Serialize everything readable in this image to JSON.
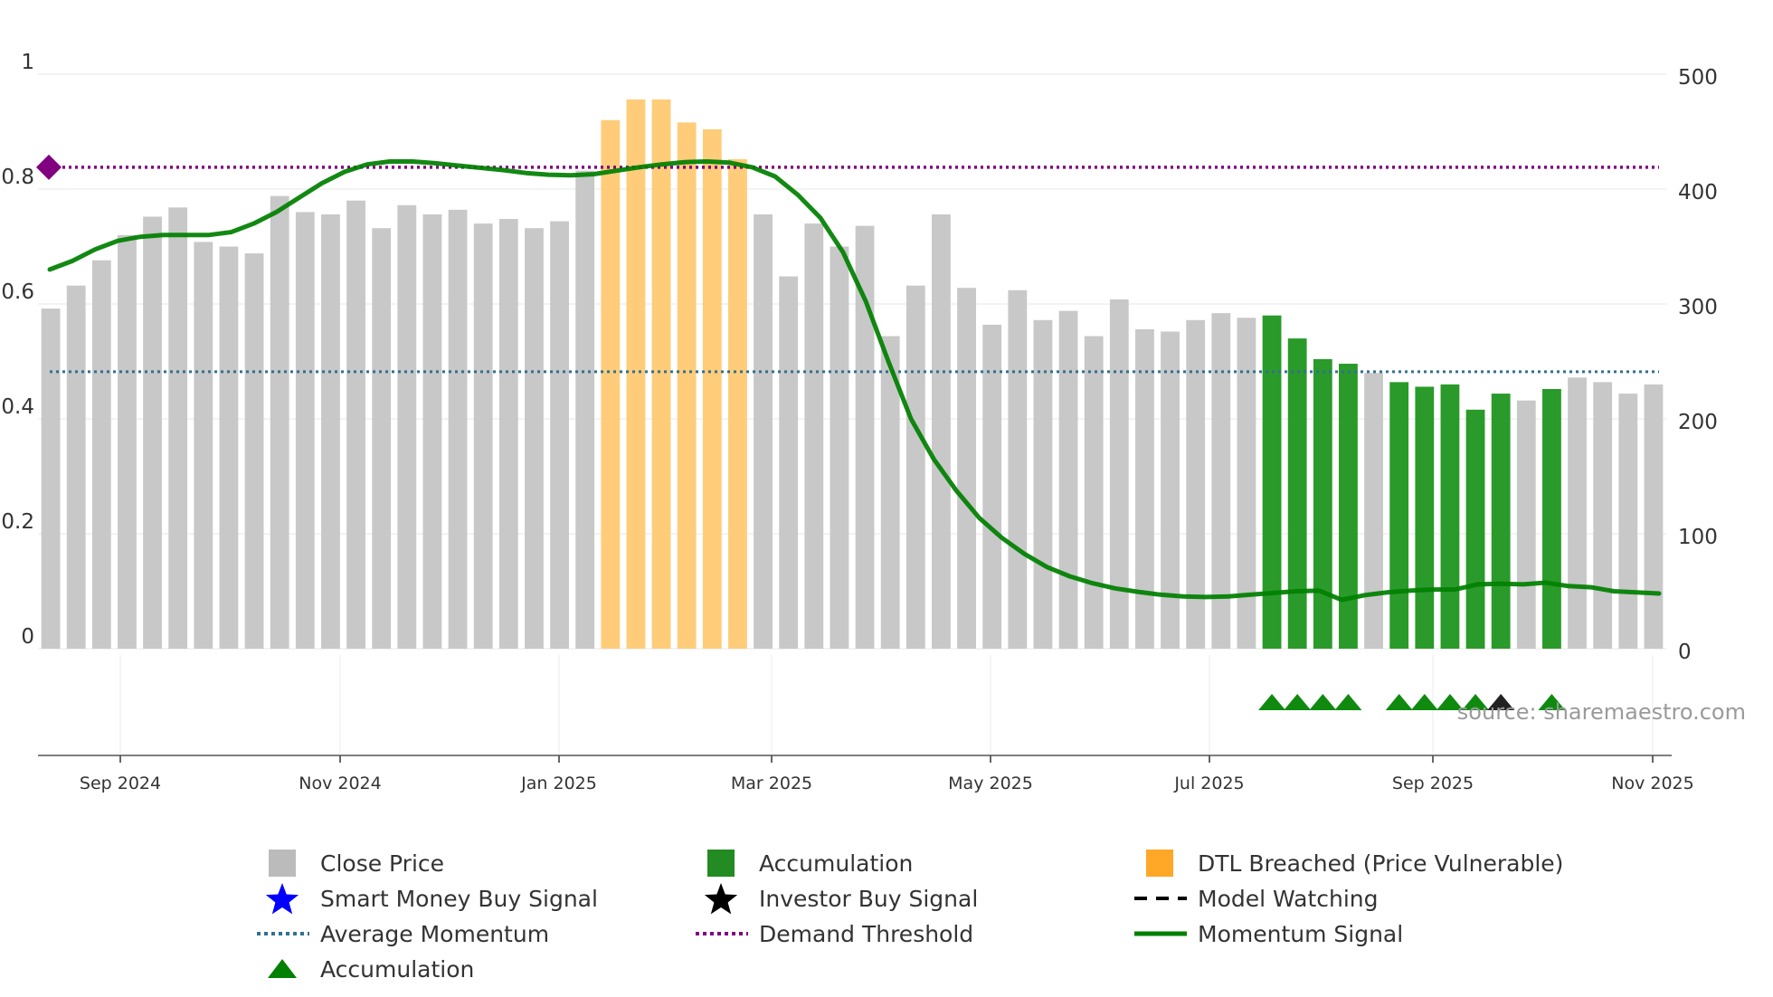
{
  "chart_data": {
    "type": "bar",
    "title": "",
    "source": "source: sharemaestro.com",
    "x_ticks": [
      "Sep 2024",
      "Nov 2024",
      "Jan 2025",
      "Mar 2025",
      "May 2025",
      "Jul 2025",
      "Sep 2025",
      "Nov 2025"
    ],
    "y_left": {
      "min": 0,
      "max": 1,
      "ticks": [
        "0",
        "0.2",
        "0.4",
        "0.6",
        "0.8",
        "1"
      ]
    },
    "y_right": {
      "min": 0,
      "max": 500,
      "ticks": [
        "0",
        "100",
        "200",
        "300",
        "400",
        "500"
      ]
    },
    "bars": {
      "name": "Close Price",
      "values": [
        296,
        316,
        338,
        360,
        376,
        384,
        354,
        350,
        344,
        394,
        380,
        378,
        390,
        366,
        386,
        378,
        382,
        370,
        374,
        366,
        372,
        416,
        460,
        478,
        478,
        458,
        452,
        426,
        378,
        324,
        370,
        350,
        368,
        272,
        316,
        378,
        314,
        282,
        312,
        286,
        294,
        272,
        304,
        278,
        276,
        286,
        292,
        288,
        290,
        270,
        252,
        248,
        240,
        232,
        228,
        230,
        208,
        222,
        216,
        226,
        236,
        232,
        222,
        230
      ],
      "types": [
        "c",
        "c",
        "c",
        "c",
        "c",
        "c",
        "c",
        "c",
        "c",
        "c",
        "c",
        "c",
        "c",
        "c",
        "c",
        "c",
        "c",
        "c",
        "c",
        "c",
        "c",
        "c",
        "d",
        "d",
        "d",
        "d",
        "d",
        "d",
        "c",
        "c",
        "c",
        "c",
        "c",
        "c",
        "c",
        "c",
        "c",
        "c",
        "c",
        "c",
        "c",
        "c",
        "c",
        "c",
        "c",
        "c",
        "c",
        "c",
        "a",
        "a",
        "a",
        "a",
        "c",
        "a",
        "a",
        "a",
        "a",
        "a",
        "c",
        "a",
        "c",
        "c",
        "c",
        "c"
      ]
    },
    "momentum_signal": [
      0.66,
      0.675,
      0.695,
      0.71,
      0.717,
      0.72,
      0.72,
      0.72,
      0.725,
      0.74,
      0.76,
      0.785,
      0.81,
      0.83,
      0.843,
      0.848,
      0.848,
      0.845,
      0.841,
      0.837,
      0.833,
      0.828,
      0.825,
      0.824,
      0.826,
      0.832,
      0.838,
      0.843,
      0.847,
      0.848,
      0.846,
      0.838,
      0.822,
      0.79,
      0.75,
      0.69,
      0.605,
      0.5,
      0.4,
      0.33,
      0.275,
      0.228,
      0.193,
      0.165,
      0.142,
      0.126,
      0.114,
      0.105,
      0.099,
      0.094,
      0.091,
      0.09,
      0.091,
      0.094,
      0.097,
      0.1,
      0.101,
      0.085,
      0.093,
      0.098,
      0.101,
      0.103,
      0.103,
      0.112,
      0.113,
      0.112,
      0.115,
      0.109,
      0.107,
      0.1,
      0.098,
      0.096
    ],
    "average_momentum": 0.482,
    "demand_threshold": 0.838,
    "accumulation_signal_bars": [
      48,
      49,
      50,
      51,
      53,
      54,
      55,
      56,
      59
    ],
    "investor_buy_signal_bars": [
      57
    ],
    "threshold_marker_value": 0.838,
    "legend": [
      {
        "label": "Close Price",
        "symbol": "square",
        "color": "#bbbbbb"
      },
      {
        "label": "Accumulation",
        "symbol": "square",
        "color": "#228b22"
      },
      {
        "label": "DTL Breached (Price Vulnerable)",
        "symbol": "square",
        "color": "#ffa726"
      },
      {
        "label": "Smart Money Buy Signal",
        "symbol": "star",
        "color": "#0000ff"
      },
      {
        "label": "Investor Buy Signal",
        "symbol": "star",
        "color": "#000000"
      },
      {
        "label": "Model Watching",
        "symbol": "dashed",
        "color": "#000000"
      },
      {
        "label": "Average Momentum",
        "symbol": "dotted",
        "color": "#31708f"
      },
      {
        "label": "Demand Threshold",
        "symbol": "dotted",
        "color": "#800080"
      },
      {
        "label": "Momentum Signal",
        "symbol": "line",
        "color": "#008000"
      },
      {
        "label": "Accumulation",
        "symbol": "triangle",
        "color": "#008000"
      }
    ],
    "colors": {
      "close": "#c8c8c8",
      "accumulation": "#2a9a2a",
      "dtl": "#ffcc7a",
      "momentum": "#008000",
      "average": "#31708f",
      "threshold": "#800080"
    }
  }
}
